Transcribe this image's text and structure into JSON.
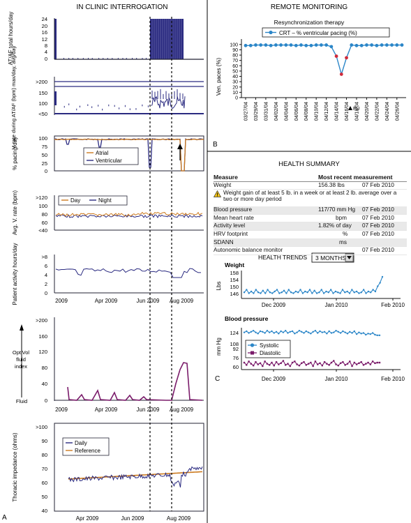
{
  "left_panel": {
    "title": "IN CLINIC INTERROGATION",
    "panel_letter": "A",
    "atf": {
      "ylabel": "AT/AF total hours/day",
      "ticks": [
        "24",
        "20",
        "16",
        "12",
        "8",
        "4",
        "0"
      ]
    },
    "vrate": {
      "ylabel": "V. rate during AT/AF (bpm) max/day, avg/day",
      "ticks": [
        ">200",
        "150",
        "100",
        "<50"
      ]
    },
    "pacing": {
      "ylabel": "% pacing/day",
      "ticks": [
        "100",
        "75",
        "50",
        "25",
        "0"
      ],
      "legend": [
        "Atrial",
        "Ventricular"
      ]
    },
    "avgv": {
      "ylabel": "Avg. V. rate (bpm)",
      "ticks": [
        ">120",
        "100",
        "80",
        "60",
        "<40"
      ],
      "legend": [
        "Day",
        "Night"
      ]
    },
    "activity": {
      "ylabel": "Patient activity hours/day",
      "ticks": [
        ">8",
        "6",
        "4",
        "2",
        "0"
      ]
    },
    "x_ticks_upper": [
      "2009",
      "Apr 2009",
      "Jun 2009",
      "Aug 2009"
    ],
    "optivol": {
      "label1": "OptiVol",
      "label2": "fluid",
      "label3": "index",
      "fluid": "Fluid",
      "ticks": [
        ">200",
        "160",
        "120",
        "80",
        "40",
        "0"
      ]
    },
    "x_ticks_mid": [
      "2009",
      "Apr 2009",
      "Jun 2009",
      "Aug 2009"
    ],
    "thoracic": {
      "ylabel": "Thoracic impedance (ohms)",
      "ticks": [
        ">100",
        "90",
        "80",
        "70",
        "60",
        "50",
        "40"
      ],
      "legend": [
        "Daily",
        "Reference"
      ]
    },
    "x_ticks_bottom": [
      "Apr 2009",
      "Jun 2009",
      "Aug 2009"
    ]
  },
  "remote": {
    "title": "REMOTE MONITORING",
    "subtitle": "Resynchronization therapy",
    "legend": "CRT – % ventricular pacing (%)",
    "ylabel": "Ven. paces (%)",
    "fu": "FU",
    "panel_letter": "B"
  },
  "health": {
    "title": "HEALTH SUMMARY",
    "header": {
      "measure": "Measure",
      "recent": "Most recent measurement"
    },
    "rows": [
      {
        "measure": "Weight",
        "value": "156.38 lbs",
        "date": "07 Feb 2010"
      },
      {
        "measure": "Blood pressure",
        "value": "117/70 mm Hg",
        "date": "07 Feb 2010"
      },
      {
        "measure": "Mean heart rate",
        "value": "bpm",
        "date": "07 Feb 2010"
      },
      {
        "measure": "Activity level",
        "value": "1.82% of day",
        "date": "07 Feb 2010"
      },
      {
        "measure": "HRV footprint",
        "value": "%",
        "date": "07 Feb 2010"
      },
      {
        "measure": "SDANN",
        "value": "ms",
        "date": ""
      },
      {
        "measure": "Autonomic balance monitor",
        "value": "",
        "date": "07 Feb 2010"
      }
    ],
    "warning": "Weight gain of at least 5 lb. in a week or at least 2 lb. average over a two or more day period",
    "trends_label": "HEALTH TRENDS",
    "trends_range": "3 MONTHS",
    "weight": {
      "title": "Weight",
      "ylabel": "Lbs",
      "ticks": [
        "158",
        "154",
        "150",
        "146"
      ]
    },
    "bp": {
      "title": "Blood pressure",
      "ylabel": "mm Hg",
      "ticks": [
        "124",
        "108",
        "92",
        "76",
        "60"
      ],
      "legend": [
        "Systolic",
        "Diastolic"
      ]
    },
    "x_ticks_weight": [
      "Dec 2009",
      "Jan 2010",
      "Feb 2010"
    ],
    "x_ticks_bp": [
      "Dec 2009",
      "Jan 2010",
      "Feb 2010"
    ],
    "panel_letter": "C"
  },
  "colors": {
    "navy": "#2a2a80",
    "orange": "#cc7a1e",
    "blue": "#2b86c8",
    "red": "#d02a3a",
    "purple": "#7a1b6a"
  },
  "chart_data": [
    {
      "type": "line",
      "title": "Resynchronization therapy",
      "ylabel": "Ven. paces (%)",
      "categories": [
        "03/27/04",
        "03/29/04",
        "03/31/04",
        "04/02/04",
        "04/04/04",
        "04/06/04",
        "04/08/04",
        "04/10/04",
        "04/12/04",
        "04/14/04",
        "04/16/04",
        "04/18/04",
        "04/20/04",
        "04/22/04",
        "04/24/04",
        "04/26/04"
      ],
      "x": [
        "03/27/04",
        "03/28/04",
        "03/29/04",
        "03/30/04",
        "03/31/04",
        "04/01/04",
        "04/02/04",
        "04/03/04",
        "04/04/04",
        "04/05/04",
        "04/06/04",
        "04/07/04",
        "04/08/04",
        "04/09/04",
        "04/10/04",
        "04/11/04",
        "04/12/04",
        "04/13/04",
        "04/14/04",
        "04/15/04",
        "04/16/04",
        "04/17/04",
        "04/18/04",
        "04/19/04",
        "04/20/04",
        "04/21/04",
        "04/22/04",
        "04/23/04",
        "04/24/04",
        "04/25/04",
        "04/26/04",
        "04/27/04"
      ],
      "series": [
        {
          "name": "CRT – % ventricular pacing (%)",
          "values": [
            98,
            98,
            99,
            99,
            99,
            98,
            99,
            99,
            99,
            99,
            98,
            99,
            98,
            98,
            99,
            99,
            99,
            96,
            78,
            44,
            75,
            99,
            98,
            98,
            99,
            99,
            98,
            99,
            99,
            99,
            99,
            99
          ]
        }
      ],
      "highlighted": [
        "04/14/04",
        "04/15/04",
        "04/16/04"
      ],
      "yticks": [
        0,
        10,
        20,
        30,
        40,
        50,
        60,
        70,
        80,
        90,
        100
      ],
      "ylim": [
        0,
        105
      ]
    },
    {
      "type": "line",
      "title": "Weight",
      "ylabel": "Lbs",
      "x_ticks": [
        "Dec 2009",
        "Jan 2010",
        "Feb 2010"
      ],
      "series": [
        {
          "name": "Weight",
          "values": [
            147.5,
            149,
            147,
            148,
            147,
            149,
            147.5,
            147,
            148.5,
            147,
            149,
            147.5,
            147,
            148,
            149,
            147,
            147.5,
            148.5,
            147,
            149,
            147.5,
            147,
            148,
            147.5,
            149,
            147,
            148,
            147.5,
            149,
            147,
            148.5,
            147,
            147.5,
            149,
            147,
            148,
            147.5,
            149,
            147,
            148,
            147.5,
            147,
            149,
            147.5,
            148,
            147,
            149,
            147.5,
            148,
            147,
            147.5,
            149,
            147,
            148,
            147.5,
            149,
            148,
            151,
            153,
            156.4
          ]
        }
      ],
      "ylim": [
        144,
        160
      ]
    },
    {
      "type": "line",
      "title": "Blood pressure",
      "ylabel": "mm Hg",
      "x_ticks": [
        "Dec 2009",
        "Jan 2010",
        "Feb 2010"
      ],
      "series": [
        {
          "name": "Systolic",
          "values": [
            122,
            124,
            121,
            123,
            125,
            122,
            120,
            124,
            123,
            121,
            125,
            122,
            124,
            121,
            123,
            120,
            124,
            122,
            125,
            121,
            123,
            124,
            120,
            122,
            125,
            123,
            121,
            124,
            122,
            120,
            123,
            125,
            121,
            124,
            122,
            123,
            120,
            124,
            121,
            122,
            125,
            123,
            121,
            124,
            122,
            120,
            123,
            121,
            124,
            119,
            122,
            120,
            121,
            118,
            120,
            119,
            121,
            118,
            117,
            117
          ]
        },
        {
          "name": "Diastolic",
          "values": [
            70,
            66,
            72,
            68,
            65,
            71,
            67,
            69,
            64,
            72,
            68,
            66,
            70,
            65,
            71,
            67,
            69,
            73,
            66,
            68,
            64,
            70,
            72,
            67,
            65,
            69,
            71,
            66,
            68,
            70,
            64,
            72,
            67,
            69,
            65,
            71,
            68,
            66,
            70,
            73,
            67,
            65,
            69,
            71,
            66,
            68,
            72,
            64,
            70,
            67,
            69,
            71,
            66,
            68,
            70,
            67,
            72,
            69,
            70,
            70
          ]
        }
      ],
      "ylim": [
        58,
        130
      ]
    }
  ]
}
